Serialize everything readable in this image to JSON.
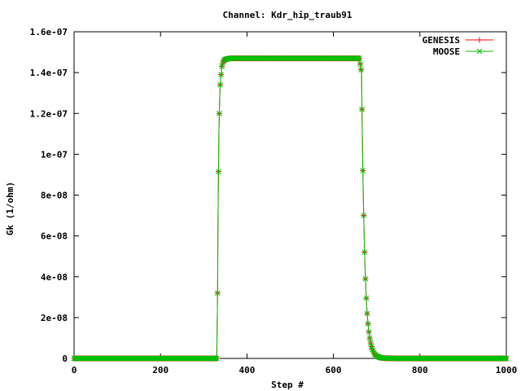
{
  "chart_data": {
    "type": "line",
    "title": "Channel: Kdr_hip_traub91",
    "xlabel": "Step #",
    "ylabel": "Gk (1/ohm)",
    "xlim": [
      0,
      1000
    ],
    "ylim": [
      0,
      1.6e-07
    ],
    "x_ticks": [
      0,
      200,
      400,
      600,
      800,
      1000
    ],
    "x_tick_labels": [
      "0",
      "200",
      "400",
      "600",
      "800",
      "1000"
    ],
    "y_ticks": [
      0,
      2e-08,
      4e-08,
      6e-08,
      8e-08,
      1e-07,
      1.2e-07,
      1.4e-07,
      1.6e-07
    ],
    "y_tick_labels": [
      "0",
      "2e-08",
      "4e-08",
      "6e-08",
      "8e-08",
      "1e-07",
      "1.2e-07",
      "1.4e-07",
      "1.6e-07"
    ],
    "grid": false,
    "legend_position": "top-right",
    "series": [
      {
        "name": "GENESIS",
        "color": "#ff0000",
        "marker": "plus",
        "x": [
          0,
          330,
          332,
          333,
          334,
          335,
          336,
          337,
          338,
          340,
          342,
          345,
          350,
          360,
          380,
          450,
          550,
          660,
          665,
          666,
          667,
          668,
          669,
          670,
          671,
          672,
          673,
          674,
          675,
          676,
          677,
          678,
          680,
          682,
          684,
          686,
          688,
          690,
          695,
          700,
          710,
          720,
          750,
          1000
        ],
        "y": [
          0,
          0,
          3.2e-08,
          6.7e-08,
          9.15e-08,
          1.09e-07,
          1.2e-07,
          1.28e-07,
          1.34e-07,
          1.39e-07,
          1.43e-07,
          1.455e-07,
          1.465e-07,
          1.47e-07,
          1.47e-07,
          1.47e-07,
          1.47e-07,
          1.47e-07,
          1.4e-07,
          1.22e-07,
          1.06e-07,
          9.2e-08,
          8e-08,
          7e-08,
          6.05e-08,
          5.2e-08,
          4.5e-08,
          3.9e-08,
          3.4e-08,
          2.95e-08,
          2.55e-08,
          2.2e-08,
          1.7e-08,
          1.3e-08,
          1e-08,
          7.6e-09,
          5.8e-09,
          4.4e-09,
          2.2e-09,
          1.1e-09,
          3e-10,
          1e-10,
          0,
          0
        ]
      },
      {
        "name": "MOOSE",
        "color": "#00c000",
        "marker": "x",
        "x": [
          0,
          330,
          332,
          333,
          334,
          335,
          336,
          337,
          338,
          340,
          342,
          345,
          350,
          360,
          380,
          450,
          550,
          660,
          665,
          666,
          667,
          668,
          669,
          670,
          671,
          672,
          673,
          674,
          675,
          676,
          677,
          678,
          680,
          682,
          684,
          686,
          688,
          690,
          695,
          700,
          710,
          720,
          750,
          1000
        ],
        "y": [
          0,
          0,
          3.2e-08,
          6.7e-08,
          9.15e-08,
          1.09e-07,
          1.2e-07,
          1.28e-07,
          1.34e-07,
          1.39e-07,
          1.43e-07,
          1.455e-07,
          1.465e-07,
          1.47e-07,
          1.47e-07,
          1.47e-07,
          1.47e-07,
          1.47e-07,
          1.4e-07,
          1.22e-07,
          1.06e-07,
          9.2e-08,
          8e-08,
          7e-08,
          6.05e-08,
          5.2e-08,
          4.5e-08,
          3.9e-08,
          3.4e-08,
          2.95e-08,
          2.55e-08,
          2.2e-08,
          1.7e-08,
          1.3e-08,
          1e-08,
          7.6e-09,
          5.8e-09,
          4.4e-09,
          2.2e-09,
          1.1e-09,
          3e-10,
          1e-10,
          0,
          0
        ]
      }
    ]
  }
}
